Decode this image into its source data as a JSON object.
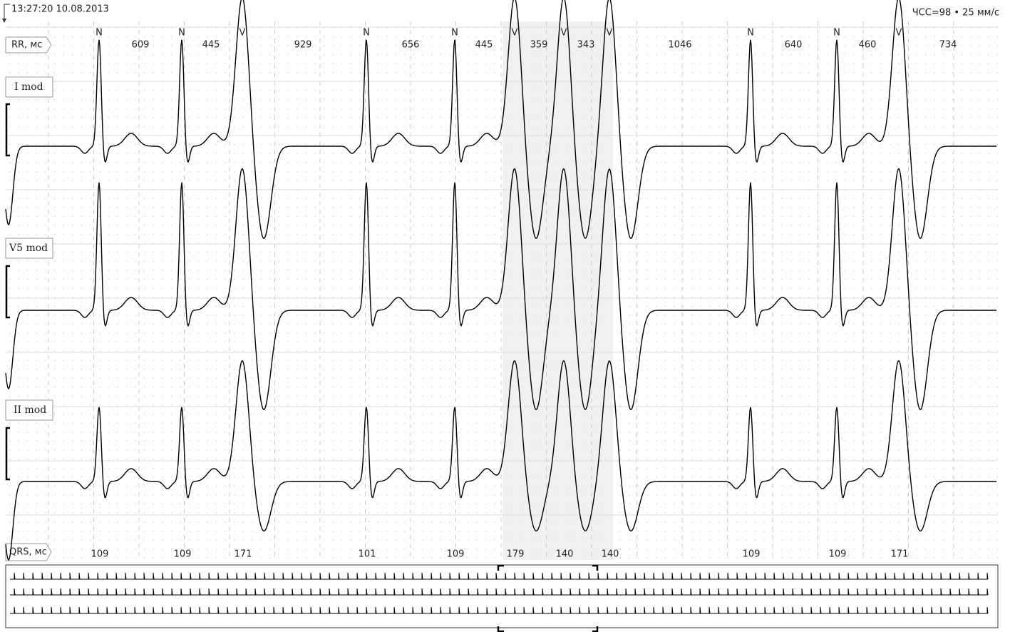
{
  "header": {
    "timestamp": "13:27:20 10.08.2013",
    "status": "ЧСС=98 • 25 мм/с"
  },
  "rows": {
    "rr": "RR, мс",
    "lead1": "I mod",
    "lead2": "V5 mod",
    "lead3": "II mod",
    "qrs": "QRS, мс"
  },
  "beats": [
    {
      "label": "N",
      "rr": 609,
      "qrs": 109
    },
    {
      "label": "N",
      "rr": 445,
      "qrs": 109
    },
    {
      "label": "V",
      "rr": 929,
      "qrs": 171
    },
    {
      "label": "N",
      "rr": 656,
      "qrs": 101
    },
    {
      "label": "N",
      "rr": 445,
      "qrs": 109
    },
    {
      "label": "V",
      "rr": 359,
      "qrs": 179
    },
    {
      "label": "V",
      "rr": 343,
      "qrs": 140
    },
    {
      "label": "V",
      "rr": 1046,
      "qrs": 140
    },
    {
      "label": "N",
      "rr": 640,
      "qrs": 109
    },
    {
      "label": "N",
      "rr": 460,
      "qrs": 109
    },
    {
      "label": "V",
      "rr": 734,
      "qrs": 171
    }
  ]
}
